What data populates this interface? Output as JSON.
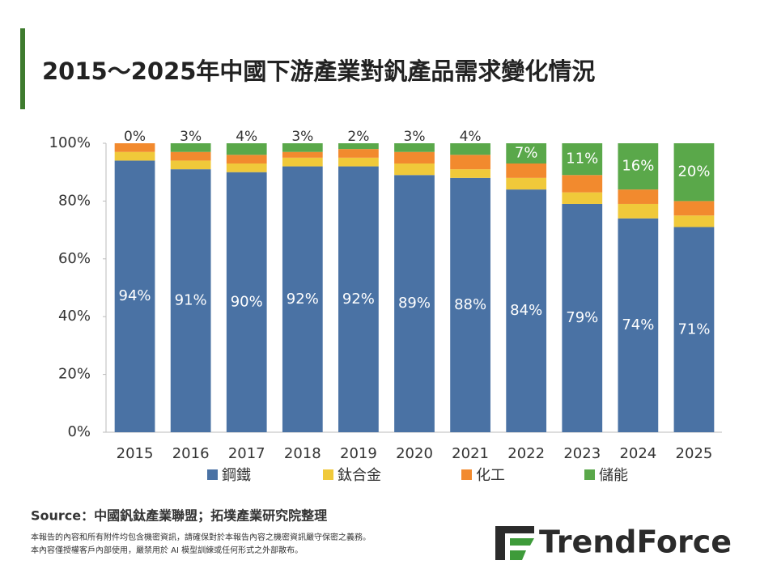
{
  "chart_data": {
    "type": "stacked-bar",
    "title": "2015～2025年中國下游產業對釩產品需求變化情況",
    "categories": [
      "2015",
      "2016",
      "2017",
      "2018",
      "2019",
      "2020",
      "2021",
      "2022",
      "2023",
      "2024",
      "2025"
    ],
    "series": [
      {
        "name": "鋼鐵",
        "color": "#4a72a4",
        "values": [
          94,
          91,
          90,
          92,
          92,
          89,
          88,
          84,
          79,
          74,
          71
        ],
        "value_labels": [
          "94%",
          "91%",
          "90%",
          "92%",
          "92%",
          "89%",
          "88%",
          "84%",
          "79%",
          "74%",
          "71%"
        ]
      },
      {
        "name": "鈦合金",
        "color": "#f0c93a",
        "values": [
          3,
          3,
          3,
          3,
          3,
          4,
          3,
          4,
          4,
          5,
          4
        ]
      },
      {
        "name": "化工",
        "color": "#f28a2e",
        "values": [
          3,
          3,
          3,
          2,
          3,
          4,
          5,
          5,
          6,
          5,
          5
        ]
      },
      {
        "name": "儲能",
        "color": "#5aa84a",
        "values": [
          0,
          3,
          4,
          3,
          2,
          3,
          4,
          7,
          11,
          16,
          20
        ],
        "value_labels": [
          "0%",
          "3%",
          "4%",
          "3%",
          "2%",
          "3%",
          "4%",
          "7%",
          "11%",
          "16%",
          "20%"
        ]
      }
    ],
    "ylim": [
      0,
      100
    ],
    "yticks": [
      {
        "value": 0,
        "label": "0%"
      },
      {
        "value": 20,
        "label": "20%"
      },
      {
        "value": 40,
        "label": "40%"
      },
      {
        "value": 60,
        "label": "60%"
      },
      {
        "value": 80,
        "label": "80%"
      },
      {
        "value": 100,
        "label": "100%"
      }
    ],
    "legend": "bottom"
  },
  "footer": {
    "source": "Source：中國釩鈦產業聯盟；拓墣產業研究院整理",
    "disclaimer": [
      "本報告的內容和所有附件均包含機密資訊，請確保對於本報告內容之機密資訊嚴守保密之義務。",
      "本內容僅授權客戶內部使用，嚴禁用於 AI 模型訓練或任何形式之外部散布。"
    ],
    "logo": "TrendForce"
  }
}
